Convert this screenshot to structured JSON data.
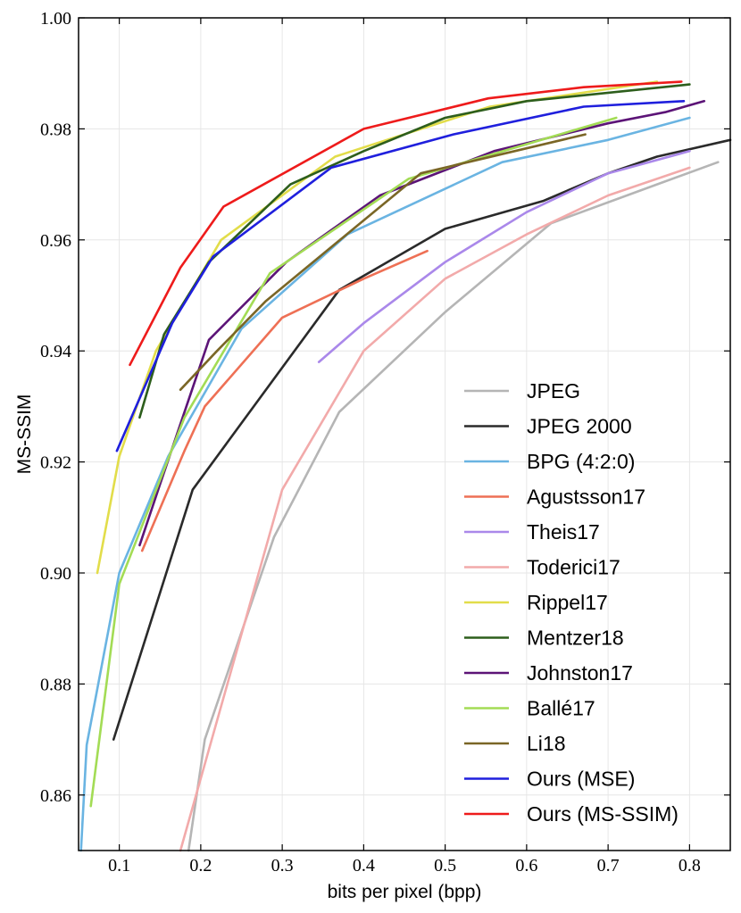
{
  "chart_data": {
    "type": "line",
    "title": "",
    "xlabel": "bits per pixel (bpp)",
    "ylabel": "MS-SSIM",
    "xlim": [
      0.05,
      0.85
    ],
    "ylim": [
      0.85,
      1.0
    ],
    "xticks": [
      0.1,
      0.2,
      0.3,
      0.4,
      0.5,
      0.6,
      0.7,
      0.8
    ],
    "xtick_labels": [
      "0.1",
      "0.2",
      "0.3",
      "0.4",
      "0.5",
      "0.6",
      "0.7",
      "0.8"
    ],
    "yticks": [
      0.86,
      0.88,
      0.9,
      0.92,
      0.94,
      0.96,
      0.98,
      1.0
    ],
    "ytick_labels": [
      "0.86",
      "0.88",
      "0.90",
      "0.92",
      "0.94",
      "0.96",
      "0.98",
      "1.00"
    ],
    "grid": true,
    "legend_position": "bottom-right",
    "series": [
      {
        "name": "JPEG",
        "color": "#b5b5b5",
        "x": [
          0.185,
          0.205,
          0.29,
          0.37,
          0.5,
          0.63,
          0.76,
          0.835
        ],
        "y": [
          0.85,
          0.87,
          0.9065,
          0.929,
          0.947,
          0.963,
          0.97,
          0.974
        ]
      },
      {
        "name": "JPEG 2000",
        "color": "#2a2a2a",
        "x": [
          0.093,
          0.19,
          0.37,
          0.5,
          0.62,
          0.7,
          0.76,
          0.85
        ],
        "y": [
          0.87,
          0.915,
          0.951,
          0.962,
          0.967,
          0.972,
          0.975,
          0.978
        ]
      },
      {
        "name": "BPG (4:2:0)",
        "color": "#6ab4e2",
        "x": [
          0.053,
          0.06,
          0.1,
          0.16,
          0.25,
          0.38,
          0.57,
          0.7,
          0.8
        ],
        "y": [
          0.85,
          0.869,
          0.9,
          0.921,
          0.944,
          0.961,
          0.974,
          0.978,
          0.982
        ]
      },
      {
        "name": "Agustsson17",
        "color": "#ee7055",
        "x": [
          0.128,
          0.18,
          0.205,
          0.3,
          0.4,
          0.478
        ],
        "y": [
          0.904,
          0.922,
          0.93,
          0.946,
          0.953,
          0.958
        ]
      },
      {
        "name": "Theis17",
        "color": "#aa88ea",
        "x": [
          0.345,
          0.4,
          0.5,
          0.6,
          0.7,
          0.8
        ],
        "y": [
          0.938,
          0.945,
          0.956,
          0.965,
          0.972,
          0.976
        ]
      },
      {
        "name": "Toderici17",
        "color": "#f2aaaa",
        "x": [
          0.175,
          0.3,
          0.4,
          0.5,
          0.6,
          0.7,
          0.8
        ],
        "y": [
          0.85,
          0.915,
          0.94,
          0.953,
          0.961,
          0.968,
          0.973
        ]
      },
      {
        "name": "Rippel17",
        "color": "#e2dd4a",
        "x": [
          0.073,
          0.1,
          0.145,
          0.225,
          0.365,
          0.555,
          0.76
        ],
        "y": [
          0.9,
          0.921,
          0.94,
          0.96,
          0.975,
          0.984,
          0.9885
        ]
      },
      {
        "name": "Mentzer18",
        "color": "#2d5e1c",
        "x": [
          0.125,
          0.155,
          0.21,
          0.31,
          0.4,
          0.5,
          0.6,
          0.8
        ],
        "y": [
          0.928,
          0.943,
          0.956,
          0.97,
          0.976,
          0.982,
          0.985,
          0.988
        ]
      },
      {
        "name": "Johnston17",
        "color": "#5c1477",
        "x": [
          0.125,
          0.15,
          0.21,
          0.305,
          0.42,
          0.56,
          0.7,
          0.77,
          0.818
        ],
        "y": [
          0.905,
          0.916,
          0.942,
          0.956,
          0.968,
          0.976,
          0.981,
          0.983,
          0.985
        ]
      },
      {
        "name": "Ballé17",
        "color": "#a3dc55",
        "x": [
          0.065,
          0.1,
          0.18,
          0.285,
          0.455,
          0.71
        ],
        "y": [
          0.858,
          0.898,
          0.928,
          0.954,
          0.971,
          0.982
        ]
      },
      {
        "name": "Li18",
        "color": "#7a6626",
        "x": [
          0.175,
          0.22,
          0.28,
          0.47,
          0.672
        ],
        "y": [
          0.933,
          0.94,
          0.949,
          0.972,
          0.979
        ]
      },
      {
        "name": "Ours (MSE)",
        "color": "#1f1fdd",
        "x": [
          0.097,
          0.165,
          0.215,
          0.36,
          0.51,
          0.67,
          0.793
        ],
        "y": [
          0.922,
          0.945,
          0.957,
          0.973,
          0.979,
          0.984,
          0.985
        ]
      },
      {
        "name": "Ours (MS-SSIM)",
        "color": "#ee1b1b",
        "x": [
          0.113,
          0.175,
          0.228,
          0.4,
          0.553,
          0.67,
          0.79
        ],
        "y": [
          0.9375,
          0.955,
          0.966,
          0.98,
          0.9855,
          0.9875,
          0.9885
        ]
      }
    ]
  }
}
